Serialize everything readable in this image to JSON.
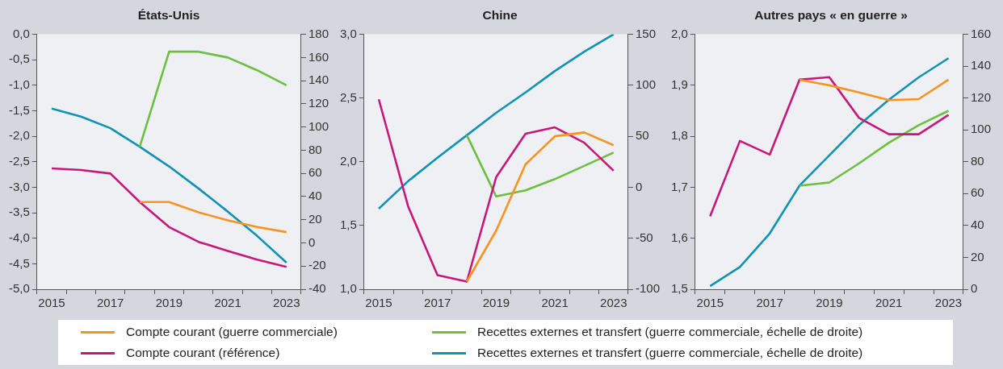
{
  "chart_data": [
    {
      "type": "line",
      "title": "États-Unis",
      "categories": [
        "2015",
        null,
        "2017",
        null,
        "2019",
        null,
        "2021",
        null,
        "2023"
      ],
      "marker": "none",
      "legend": "bottom",
      "ylim": [
        -5,
        0
      ],
      "yticks": [
        {
          "value": 0,
          "label": "0,0"
        },
        {
          "value": -0.5,
          "label": "-0,5"
        },
        {
          "value": -1,
          "label": "-1,0"
        },
        {
          "value": -1.5,
          "label": "-1,5"
        },
        {
          "value": -2,
          "label": "-2,0"
        },
        {
          "value": -2.5,
          "label": "-2,5"
        },
        {
          "value": -3,
          "label": "-3,0"
        },
        {
          "value": -3.5,
          "label": "-3,5"
        },
        {
          "value": -4,
          "label": "-4,0"
        },
        {
          "value": -4.5,
          "label": "-4,5"
        },
        {
          "value": -5,
          "label": "-5,0"
        }
      ],
      "y2lim": [
        -40,
        180
      ],
      "y2ticks": [
        -40,
        -20,
        0,
        20,
        40,
        60,
        80,
        100,
        120,
        140,
        160,
        180
      ],
      "series": [
        {
          "name": "Compte courant (guerre commerciale)",
          "color": "#f7931e",
          "values": [
            null,
            null,
            null,
            -3.29,
            -3.29,
            -3.49,
            -3.65,
            -3.78,
            -3.88
          ]
        },
        {
          "name": "Compte courant (référence)",
          "color": "#c8177a",
          "values": [
            -2.63,
            -2.66,
            -2.73,
            -3.29,
            -3.78,
            -4.07,
            -4.25,
            -4.42,
            -4.56
          ]
        },
        {
          "name": "Recettes externes et transfert (guerre commerciale, échelle de droite)",
          "color": "#6cbf3f",
          "axis": "y2",
          "values": [
            null,
            null,
            null,
            83,
            165,
            165,
            160,
            149,
            136
          ]
        },
        {
          "name": "Recettes externes et transfert (guerre commerciale, échelle de droite)",
          "color": "#0f93b5",
          "axis": "y2",
          "values": [
            116,
            109,
            99,
            83,
            66,
            47,
            27,
            6,
            -17
          ]
        }
      ]
    },
    {
      "type": "line",
      "title": "Chine",
      "categories": [
        "2015",
        null,
        "2017",
        null,
        "2019",
        null,
        "2021",
        null,
        "2023"
      ],
      "marker": "none",
      "ylim": [
        1,
        3
      ],
      "yticks": [
        {
          "value": 1,
          "label": "1,0"
        },
        {
          "value": 1.5,
          "label": "1,5"
        },
        {
          "value": 2,
          "label": "2,0"
        },
        {
          "value": 2.5,
          "label": "2,5"
        },
        {
          "value": 3,
          "label": "3,0"
        }
      ],
      "y2lim": [
        -100,
        150
      ],
      "y2ticks": [
        -100,
        -50,
        0,
        50,
        100,
        150
      ],
      "series": [
        {
          "color": "#f7931e",
          "values": [
            null,
            null,
            null,
            1.06,
            1.46,
            1.98,
            2.2,
            2.23,
            2.13
          ]
        },
        {
          "color": "#c8177a",
          "values": [
            2.49,
            1.65,
            1.11,
            1.06,
            1.88,
            2.22,
            2.27,
            2.15,
            1.93
          ]
        },
        {
          "color": "#6cbf3f",
          "axis": "y2",
          "values": [
            null,
            null,
            null,
            51,
            -9,
            -3,
            8,
            21,
            34
          ]
        },
        {
          "color": "#0f93b5",
          "axis": "y2",
          "values": [
            -21,
            6,
            29,
            51,
            73,
            93,
            114,
            133,
            150
          ]
        }
      ]
    },
    {
      "type": "line",
      "title": "Autres pays « en guerre »",
      "categories": [
        "2015",
        null,
        "2017",
        null,
        "2019",
        null,
        "2021",
        null,
        "2023"
      ],
      "marker": "none",
      "ylim": [
        1.5,
        2
      ],
      "yticks": [
        {
          "value": 1.5,
          "label": "1,5"
        },
        {
          "value": 1.6,
          "label": "1,6"
        },
        {
          "value": 1.7,
          "label": "1,7"
        },
        {
          "value": 1.8,
          "label": "1,8"
        },
        {
          "value": 1.9,
          "label": "1,9"
        },
        {
          "value": 2,
          "label": "2,0"
        }
      ],
      "y2lim": [
        0,
        160
      ],
      "y2ticks": [
        0,
        20,
        40,
        60,
        80,
        100,
        120,
        140,
        160
      ],
      "series": [
        {
          "color": "#f7931e",
          "values": [
            null,
            null,
            null,
            1.911,
            1.9,
            1.886,
            1.871,
            1.873,
            1.911
          ]
        },
        {
          "color": "#c8177a",
          "values": [
            1.643,
            1.791,
            1.764,
            1.911,
            1.916,
            1.836,
            1.804,
            1.804,
            1.842
          ]
        },
        {
          "color": "#6cbf3f",
          "axis": "y2",
          "values": [
            null,
            null,
            null,
            65,
            67,
            79,
            92,
            103,
            112
          ]
        },
        {
          "color": "#0f93b5",
          "axis": "y2",
          "values": [
            2,
            14,
            35,
            65,
            84,
            103,
            119,
            133,
            145
          ]
        }
      ]
    }
  ]
}
